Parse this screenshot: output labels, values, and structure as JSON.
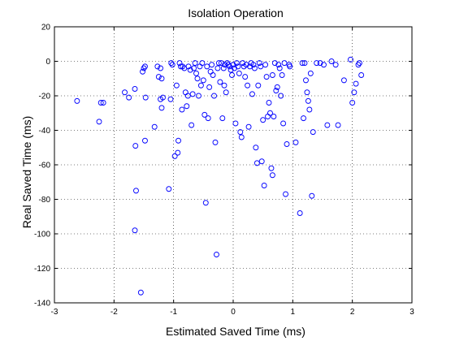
{
  "chart_data": {
    "type": "scatter",
    "title": "Isolation Operation",
    "xlabel": "Estimated Saved Time (ms)",
    "ylabel": "Real Saved Time (ms)",
    "xlim": [
      -3,
      3
    ],
    "ylim": [
      -140,
      20
    ],
    "xticks": [
      -3,
      -2,
      -1,
      0,
      1,
      2,
      3
    ],
    "yticks": [
      -140,
      -120,
      -100,
      -80,
      -60,
      -40,
      -20,
      0,
      20
    ],
    "grid": true,
    "marker": "circle",
    "marker_color": "#0000ff",
    "points": [
      [
        -2.62,
        -23
      ],
      [
        -2.22,
        -24
      ],
      [
        -2.18,
        -24
      ],
      [
        -2.25,
        -35
      ],
      [
        -1.82,
        -18
      ],
      [
        -1.75,
        -21
      ],
      [
        -1.65,
        -16
      ],
      [
        -1.64,
        -49
      ],
      [
        -1.63,
        -75
      ],
      [
        -1.65,
        -98
      ],
      [
        -1.55,
        -134
      ],
      [
        -1.52,
        -6
      ],
      [
        -1.5,
        -4
      ],
      [
        -1.48,
        -3
      ],
      [
        -1.47,
        -21
      ],
      [
        -1.48,
        -46
      ],
      [
        -1.32,
        -38
      ],
      [
        -1.27,
        -3
      ],
      [
        -1.25,
        -9
      ],
      [
        -1.22,
        -4
      ],
      [
        -1.2,
        -10
      ],
      [
        -1.22,
        -22
      ],
      [
        -1.2,
        -27
      ],
      [
        -1.18,
        -21
      ],
      [
        -1.08,
        -74
      ],
      [
        -1.05,
        -22
      ],
      [
        -1.04,
        -1
      ],
      [
        -1.02,
        -2
      ],
      [
        -0.98,
        -55
      ],
      [
        -0.95,
        -14
      ],
      [
        -0.93,
        -53
      ],
      [
        -0.92,
        -46
      ],
      [
        -0.9,
        -1
      ],
      [
        -0.88,
        -3
      ],
      [
        -0.85,
        -3
      ],
      [
        -0.82,
        -4
      ],
      [
        -0.8,
        -18
      ],
      [
        -0.78,
        -26
      ],
      [
        -0.76,
        -20
      ],
      [
        -0.75,
        -3
      ],
      [
        -0.72,
        -5
      ],
      [
        -0.7,
        -37
      ],
      [
        -0.68,
        -19
      ],
      [
        -0.66,
        -4
      ],
      [
        -0.64,
        -1
      ],
      [
        -0.62,
        -7
      ],
      [
        -0.6,
        -10
      ],
      [
        -0.58,
        -20
      ],
      [
        -0.56,
        -3
      ],
      [
        -0.54,
        -14
      ],
      [
        -0.52,
        -1
      ],
      [
        -0.5,
        -11
      ],
      [
        -0.48,
        -31
      ],
      [
        -0.46,
        -82
      ],
      [
        -0.44,
        -3
      ],
      [
        -0.42,
        -33
      ],
      [
        -0.4,
        -15
      ],
      [
        -0.38,
        -6
      ],
      [
        -0.36,
        -2
      ],
      [
        -0.34,
        -8
      ],
      [
        -0.32,
        -20
      ],
      [
        -0.3,
        -47
      ],
      [
        -0.28,
        -112
      ],
      [
        -0.26,
        -4
      ],
      [
        -0.24,
        -1
      ],
      [
        -0.22,
        -12
      ],
      [
        -0.2,
        -1
      ],
      [
        -0.18,
        -33
      ],
      [
        -0.16,
        -4
      ],
      [
        -0.14,
        -2
      ],
      [
        -0.12,
        -18
      ],
      [
        -0.1,
        -1
      ],
      [
        -0.08,
        -2
      ],
      [
        -0.06,
        -3
      ],
      [
        -0.04,
        -5
      ],
      [
        -0.02,
        -8
      ],
      [
        0.0,
        -2
      ],
      [
        0.02,
        -4
      ],
      [
        0.04,
        -36
      ],
      [
        0.06,
        -1
      ],
      [
        0.08,
        -3
      ],
      [
        0.1,
        -7
      ],
      [
        0.12,
        -41
      ],
      [
        0.14,
        -44
      ],
      [
        0.16,
        -1
      ],
      [
        0.18,
        -3
      ],
      [
        0.2,
        -9
      ],
      [
        0.22,
        -2
      ],
      [
        0.24,
        -14
      ],
      [
        0.26,
        -38
      ],
      [
        0.28,
        -3
      ],
      [
        0.3,
        -1
      ],
      [
        0.32,
        -19
      ],
      [
        0.34,
        -2
      ],
      [
        0.36,
        -4
      ],
      [
        0.38,
        -50
      ],
      [
        0.4,
        -59
      ],
      [
        0.42,
        -14
      ],
      [
        0.44,
        -1
      ],
      [
        0.46,
        -3
      ],
      [
        0.48,
        -58
      ],
      [
        0.5,
        -34
      ],
      [
        0.52,
        -72
      ],
      [
        0.54,
        -2
      ],
      [
        0.56,
        -9
      ],
      [
        0.58,
        -32
      ],
      [
        0.6,
        -24
      ],
      [
        0.62,
        -30
      ],
      [
        0.64,
        -62
      ],
      [
        0.66,
        -66
      ],
      [
        0.68,
        -32
      ],
      [
        0.7,
        -1
      ],
      [
        0.72,
        -17
      ],
      [
        0.74,
        -15
      ],
      [
        0.76,
        -2
      ],
      [
        0.78,
        -4
      ],
      [
        0.8,
        -20
      ],
      [
        0.82,
        -8
      ],
      [
        0.84,
        -36
      ],
      [
        0.86,
        -1
      ],
      [
        0.88,
        -77
      ],
      [
        0.9,
        -48
      ],
      [
        0.94,
        -2
      ],
      [
        1.05,
        -47
      ],
      [
        1.12,
        -88
      ],
      [
        1.16,
        -1
      ],
      [
        1.18,
        -33
      ],
      [
        1.2,
        -1
      ],
      [
        1.22,
        -11
      ],
      [
        1.24,
        -18
      ],
      [
        1.26,
        -23
      ],
      [
        1.28,
        -28
      ],
      [
        1.3,
        -7
      ],
      [
        1.32,
        -78
      ],
      [
        1.34,
        -41
      ],
      [
        1.4,
        -1
      ],
      [
        1.46,
        -1
      ],
      [
        1.52,
        -2
      ],
      [
        1.58,
        -37
      ],
      [
        1.65,
        0
      ],
      [
        1.72,
        -2
      ],
      [
        1.76,
        -37
      ],
      [
        1.86,
        -11
      ],
      [
        1.97,
        1
      ],
      [
        2.0,
        -24
      ],
      [
        2.03,
        -18
      ],
      [
        2.06,
        -13
      ],
      [
        2.1,
        -2
      ],
      [
        2.12,
        -1
      ],
      [
        2.15,
        -8
      ],
      [
        -0.86,
        -28
      ],
      [
        -0.15,
        -14
      ],
      [
        0.66,
        -8
      ],
      [
        0.95,
        -3
      ]
    ]
  }
}
